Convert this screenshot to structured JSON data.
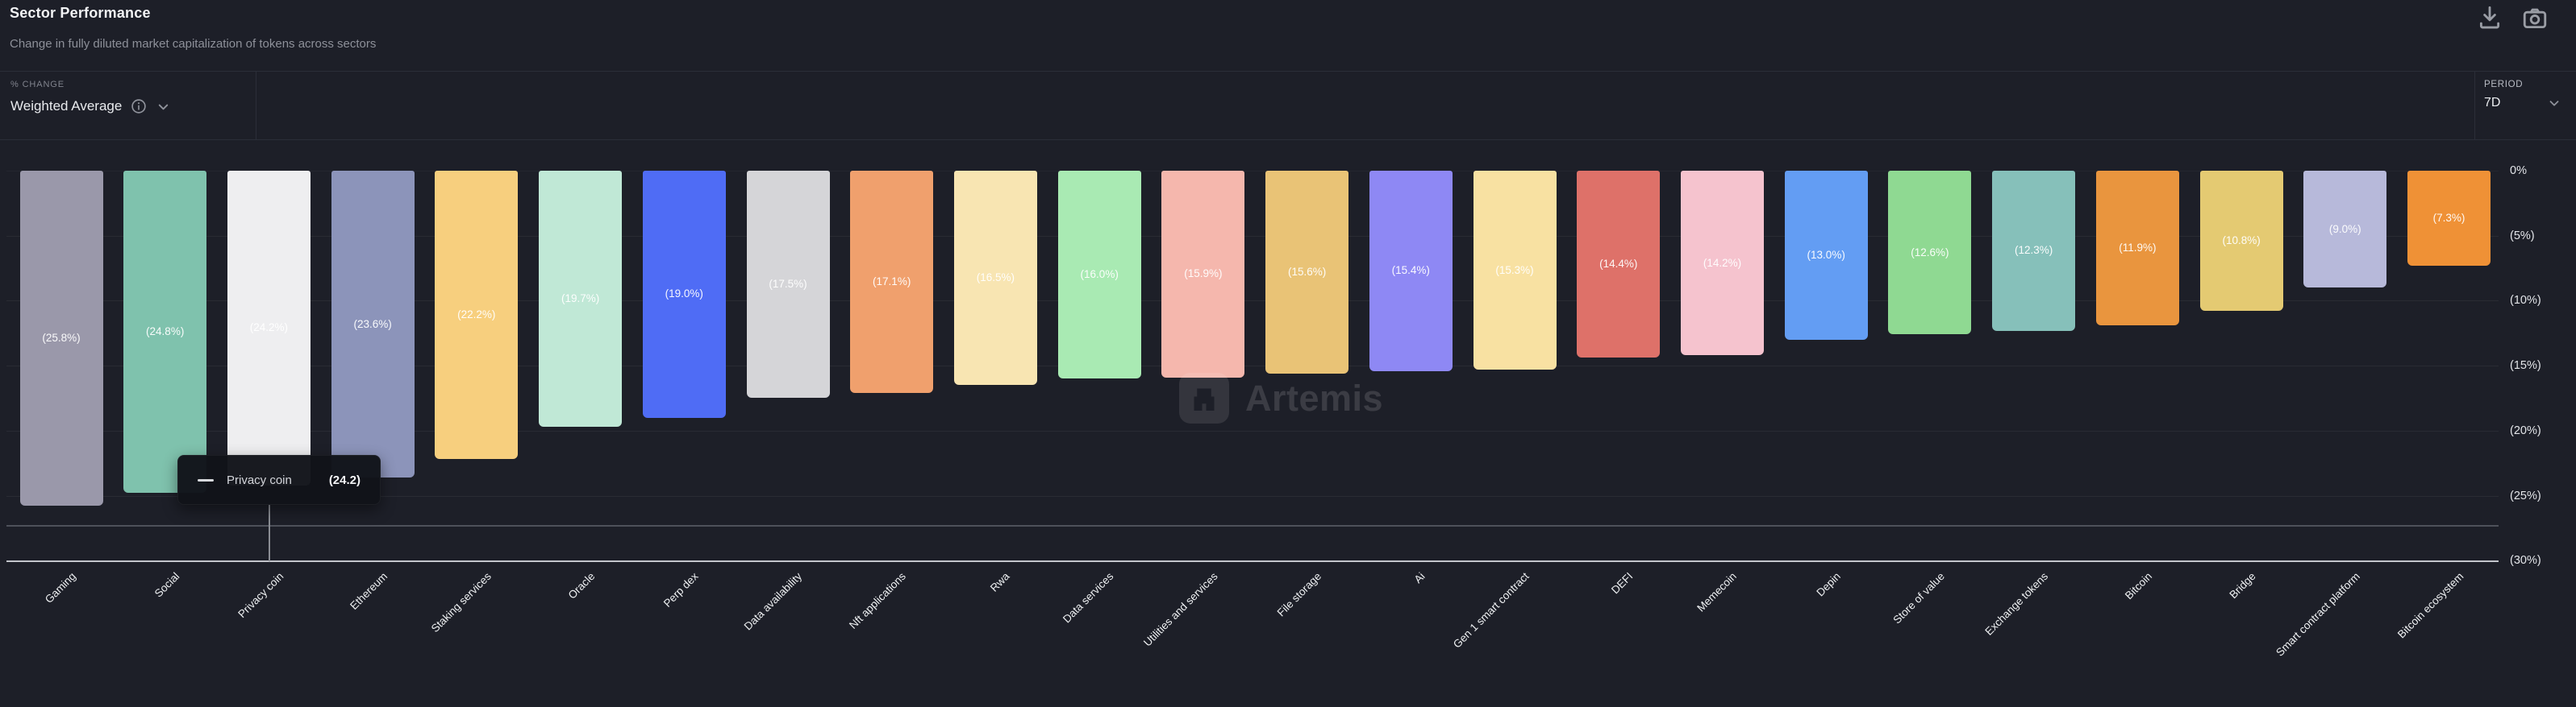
{
  "header": {
    "title": "Sector Performance",
    "subtitle": "Change in fully diluted market capitalization of tokens across sectors"
  },
  "toolbar": {
    "download_icon": "download",
    "camera_icon": "camera"
  },
  "controls": {
    "metric": {
      "label": "% CHANGE",
      "value": "Weighted Average",
      "info_icon": "info",
      "chevron_icon": "chevron-down"
    },
    "period": {
      "label": "PERIOD",
      "value": "7D",
      "chevron_icon": "chevron-down"
    }
  },
  "tooltip": {
    "marker": "dash",
    "series": "Privacy coin",
    "value": "(24.2)"
  },
  "watermark": {
    "text": "Artemis"
  },
  "chart_data": {
    "type": "bar",
    "title": "Sector Performance",
    "subtitle": "Change in fully diluted market capitalization of tokens across sectors",
    "period": "7D",
    "metric": "Weighted Average % change",
    "orientation": "vertical",
    "ylim": [
      -30,
      0
    ],
    "grid": true,
    "y_ticks": [
      "0%",
      "(5%)",
      "(10%)",
      "(15%)",
      "(20%)",
      "(25%)",
      "(30%)"
    ],
    "highlighted_category": "Privacy coin",
    "categories": [
      "Gaming",
      "Social",
      "Privacy coin",
      "Ethereum",
      "Staking services",
      "Oracle",
      "Perp dex",
      "Data availability",
      "Nft applications",
      "Rwa",
      "Data services",
      "Utilities and services",
      "File storage",
      "Ai",
      "Gen 1 smart contract",
      "DEFI",
      "Memecoin",
      "Depin",
      "Store of value",
      "Exchange tokens",
      "Bitcoin",
      "Bridge",
      "Smart contract platform",
      "Bitcoin ecosystem"
    ],
    "values": [
      -25.8,
      -24.8,
      -24.2,
      -23.6,
      -22.2,
      -19.7,
      -19.0,
      -17.5,
      -17.1,
      -16.5,
      -16.0,
      -15.9,
      -15.6,
      -15.4,
      -15.3,
      -14.4,
      -14.2,
      -13.0,
      -12.6,
      -12.3,
      -11.9,
      -10.8,
      -9.0,
      -7.3
    ],
    "bar_labels": [
      "(25.8%)",
      "(24.8%)",
      "(24.2%)",
      "(23.6%)",
      "(22.2%)",
      "(19.7%)",
      "(19.0%)",
      "(17.5%)",
      "(17.1%)",
      "(16.5%)",
      "(16.0%)",
      "(15.9%)",
      "(15.6%)",
      "(15.4%)",
      "(15.3%)",
      "(14.4%)",
      "(14.2%)",
      "(13.0%)",
      "(12.6%)",
      "(12.3%)",
      "(11.9%)",
      "(10.8%)",
      "(9.0%)",
      "(7.3%)"
    ],
    "bar_colors": [
      "#9a98aa",
      "#7fc2ad",
      "#eeeef0",
      "#8c94ba",
      "#f7cf7e",
      "#c0e8d6",
      "#4f6cf5",
      "#d5d5d8",
      "#f0a06d",
      "#f8e5b2",
      "#a9eab3",
      "#f5b7ad",
      "#e9c376",
      "#8e88f4",
      "#f8e1a2",
      "#de7169",
      "#f5c3ce",
      "#639df3",
      "#8fd992",
      "#86c0ba",
      "#e9953e",
      "#e4ca72",
      "#b7b9da",
      "#ef9136"
    ]
  }
}
